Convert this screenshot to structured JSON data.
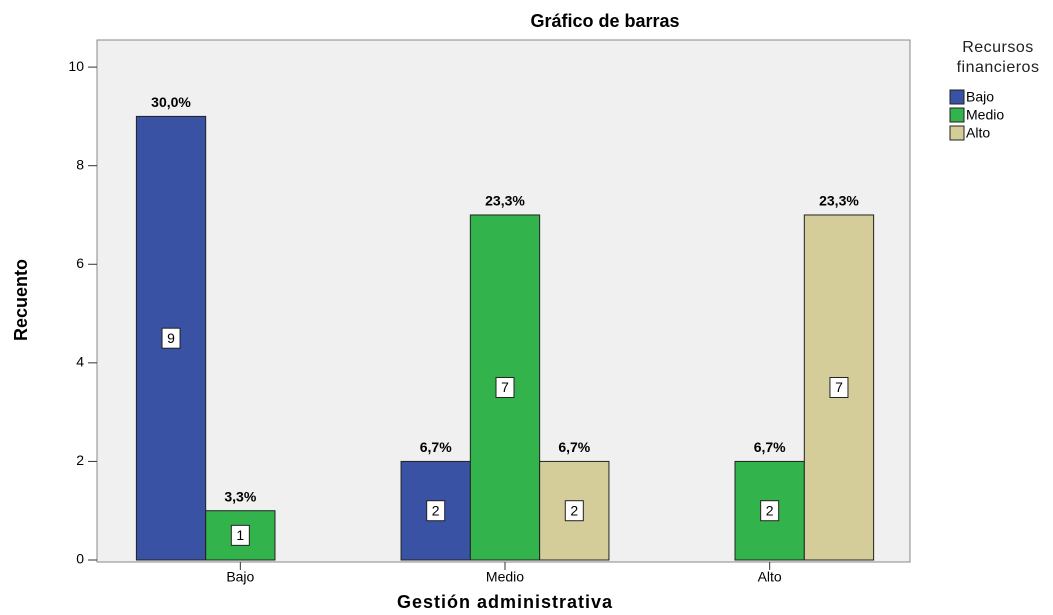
{
  "chart_data": {
    "type": "bar",
    "title": "Gráfico de barras",
    "x_label": "Gestión administrativa",
    "y_label": "Recuento",
    "legend_title": "Recursos financieros",
    "legend": "right",
    "categories": [
      "Bajo",
      "Medio",
      "Alto"
    ],
    "series": [
      {
        "name": "Bajo",
        "color": "#3a52a3",
        "values": [
          9,
          2,
          null
        ],
        "percent_labels": [
          "30,0%",
          "6,7%",
          null
        ]
      },
      {
        "name": "Medio",
        "color": "#33b34b",
        "values": [
          1,
          7,
          2
        ],
        "percent_labels": [
          "3,3%",
          "23,3%",
          "6,7%"
        ]
      },
      {
        "name": "Alto",
        "color": "#d4cd9a",
        "values": [
          null,
          2,
          7
        ],
        "percent_labels": [
          null,
          "6,7%",
          "23,3%"
        ]
      }
    ],
    "ylim": [
      0,
      10.55
    ],
    "yticks": [
      0,
      2,
      4,
      6,
      8,
      10
    ],
    "grid": false
  }
}
